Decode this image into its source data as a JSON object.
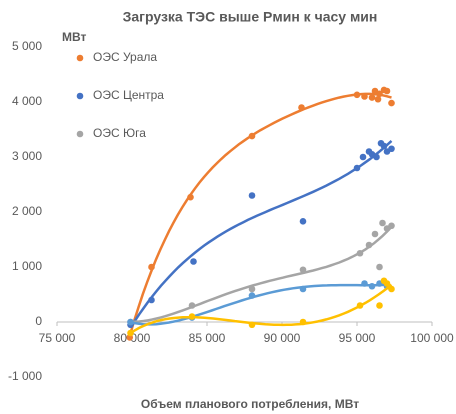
{
  "chart_data": {
    "type": "scatter",
    "title": "Загрузка ТЭС выше Рмин к часу мин",
    "y_label": "МВт",
    "x_label": "Объем планового потребления, МВт",
    "xlim": [
      75000,
      100000
    ],
    "xticks": [
      {
        "value": 75000,
        "label": "75 000"
      },
      {
        "value": 80000,
        "label": "80 000"
      },
      {
        "value": 85000,
        "label": "85 000"
      },
      {
        "value": 90000,
        "label": "90 000"
      },
      {
        "value": 95000,
        "label": "95 000"
      },
      {
        "value": 100000,
        "label": "100 000"
      }
    ],
    "ylim": [
      -1000,
      5000
    ],
    "yticks": [
      {
        "value": -1000,
        "label": "-1 000"
      },
      0,
      {
        "value": 1000,
        "label": "1 000"
      },
      {
        "value": 2000,
        "label": "2 000"
      },
      {
        "value": 3000,
        "label": "3 000"
      },
      {
        "value": 4000,
        "label": "4 000"
      },
      {
        "value": 5000,
        "label": "5 000"
      }
    ],
    "grid": false,
    "legend": "top-left",
    "trendline": true,
    "series": [
      {
        "name": "ОЭС Урала",
        "color": "#ED7D31",
        "x": [
          79850,
          81300,
          83900,
          88000,
          91300,
          95000,
          95500,
          96000,
          96200,
          96400,
          96500,
          96800,
          97000,
          97300
        ],
        "values": [
          -280,
          1000,
          2270,
          3380,
          3900,
          4130,
          4100,
          4080,
          4200,
          4050,
          4150,
          4220,
          4200,
          3980
        ]
      },
      {
        "name": "ОЭС Центра",
        "color": "#4472C4",
        "x": [
          79900,
          81300,
          84100,
          88000,
          91400,
          95000,
          95400,
          95800,
          96000,
          96300,
          96600,
          96800,
          97000,
          97300
        ],
        "values": [
          -50,
          400,
          1100,
          2300,
          1830,
          2800,
          3000,
          3100,
          3050,
          3000,
          3250,
          3200,
          3100,
          3150
        ]
      },
      {
        "name": "ОЭС Юга",
        "color": "#A5A5A5",
        "x": [
          79900,
          84000,
          88000,
          91400,
          95200,
          95800,
          96200,
          96500,
          96700,
          97000,
          97300
        ],
        "values": [
          0,
          300,
          600,
          950,
          1250,
          1400,
          1600,
          1000,
          1800,
          1700,
          1750
        ]
      },
      {
        "color": "#5B9BD5",
        "x": [
          79900,
          84000,
          88000,
          91400,
          95500,
          96000,
          96500,
          97000
        ],
        "values": [
          0,
          80,
          480,
          600,
          700,
          650,
          700,
          650
        ]
      },
      {
        "color": "#FFC000",
        "x": [
          79900,
          84000,
          88000,
          91400,
          95200,
          96500,
          96800,
          97000,
          97300
        ],
        "values": [
          -200,
          100,
          -50,
          0,
          300,
          300,
          750,
          700,
          600
        ]
      }
    ]
  }
}
